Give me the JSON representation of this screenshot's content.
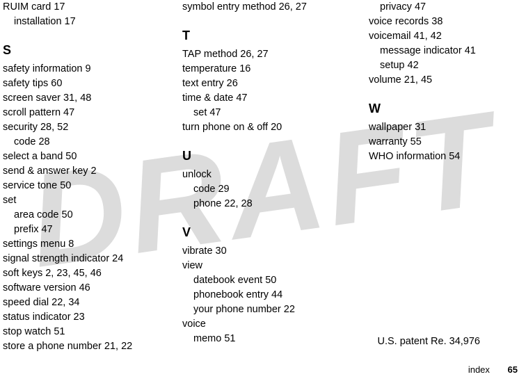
{
  "watermark": "DRAFT",
  "columns": [
    {
      "items": [
        {
          "text": "RUIM card  17",
          "indent": 0
        },
        {
          "text": "installation  17",
          "indent": 1
        },
        {
          "type": "letter",
          "text": "S"
        },
        {
          "text": "safety information  9",
          "indent": 0
        },
        {
          "text": "safety tips  60",
          "indent": 0
        },
        {
          "text": "screen saver  31, 48",
          "indent": 0
        },
        {
          "text": "scroll pattern  47",
          "indent": 0
        },
        {
          "text": "security  28, 52",
          "indent": 0
        },
        {
          "text": "code  28",
          "indent": 1
        },
        {
          "text": "select a band  50",
          "indent": 0
        },
        {
          "text": "send & answer key  2",
          "indent": 0
        },
        {
          "text": "service tone  50",
          "indent": 0
        },
        {
          "text": "set",
          "indent": 0
        },
        {
          "text": "area code  50",
          "indent": 1
        },
        {
          "text": "prefix  47",
          "indent": 1
        },
        {
          "text": "settings menu  8",
          "indent": 0
        },
        {
          "text": "signal strength indicator  24",
          "indent": 0
        },
        {
          "text": "soft keys  2, 23, 45, 46",
          "indent": 0
        },
        {
          "text": "software version  46",
          "indent": 0
        },
        {
          "text": "speed dial  22, 34",
          "indent": 0
        },
        {
          "text": "status indicator  23",
          "indent": 0
        },
        {
          "text": "stop watch  51",
          "indent": 0
        },
        {
          "text": "store a phone number  21, 22",
          "indent": 0
        }
      ]
    },
    {
      "items": [
        {
          "text": "symbol entry method  26, 27",
          "indent": 0
        },
        {
          "type": "letter",
          "text": "T"
        },
        {
          "text": "TAP method  26, 27",
          "indent": 0
        },
        {
          "text": "temperature  16",
          "indent": 0
        },
        {
          "text": "text entry  26",
          "indent": 0
        },
        {
          "text": "time & date  47",
          "indent": 0
        },
        {
          "text": "set  47",
          "indent": 1
        },
        {
          "text": "turn phone on & off  20",
          "indent": 0
        },
        {
          "type": "letter",
          "text": "U"
        },
        {
          "text": "unlock",
          "indent": 0
        },
        {
          "text": "code  29",
          "indent": 1
        },
        {
          "text": "phone  22, 28",
          "indent": 1
        },
        {
          "type": "letter",
          "text": "V"
        },
        {
          "text": "vibrate  30",
          "indent": 0
        },
        {
          "text": "view",
          "indent": 0
        },
        {
          "text": "datebook event  50",
          "indent": 1
        },
        {
          "text": "phonebook entry  44",
          "indent": 1
        },
        {
          "text": "your phone number  22",
          "indent": 1
        },
        {
          "text": "voice",
          "indent": 0
        },
        {
          "text": "memo  51",
          "indent": 1
        }
      ]
    },
    {
      "items": [
        {
          "text": "privacy  47",
          "indent": 1
        },
        {
          "text": "voice records  38",
          "indent": 0
        },
        {
          "text": "voicemail  41, 42",
          "indent": 0
        },
        {
          "text": "message indicator  41",
          "indent": 1
        },
        {
          "text": "setup  42",
          "indent": 1
        },
        {
          "text": "volume  21, 45",
          "indent": 0
        },
        {
          "type": "letter",
          "text": "W"
        },
        {
          "text": "wallpaper  31",
          "indent": 0
        },
        {
          "text": "warranty  55",
          "indent": 0
        },
        {
          "text": "WHO information  54",
          "indent": 0
        }
      ]
    }
  ],
  "patent": "U.S. patent Re. 34,976",
  "footer_label": "index",
  "footer_page": "65"
}
